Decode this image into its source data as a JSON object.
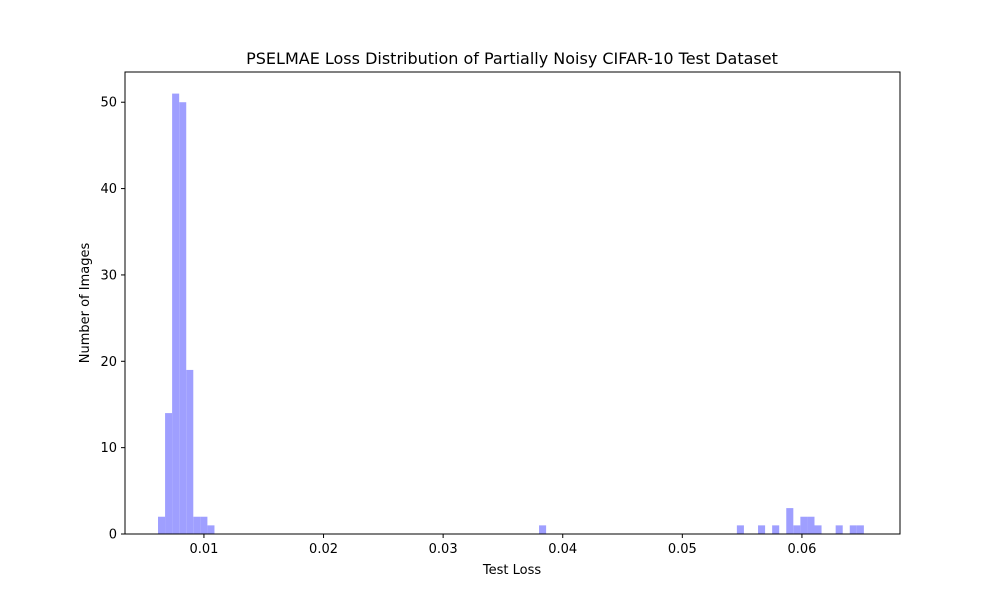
{
  "chart_data": {
    "type": "bar",
    "subtype": "histogram",
    "title": "PSELMAE Loss Distribution of Partially Noisy CIFAR-10 Test Dataset",
    "xlabel": "Test Loss",
    "ylabel": "Number of Images",
    "xlim": [
      0.0034,
      0.0682
    ],
    "ylim": [
      0,
      53.5
    ],
    "bin_width": 0.00059,
    "x_ticks": [
      0.01,
      0.02,
      0.03,
      0.04,
      0.05,
      0.06
    ],
    "x_tick_labels": [
      "0.01",
      "0.02",
      "0.03",
      "0.04",
      "0.05",
      "0.06"
    ],
    "y_ticks": [
      0,
      10,
      20,
      30,
      40,
      50
    ],
    "y_tick_labels": [
      "0",
      "10",
      "20",
      "30",
      "40",
      "50"
    ],
    "bar_color": "#9f9fff",
    "grid": false,
    "legend": "none",
    "bins": [
      {
        "x": 0.00616,
        "count": 2
      },
      {
        "x": 0.00675,
        "count": 14
      },
      {
        "x": 0.00734,
        "count": 51
      },
      {
        "x": 0.00793,
        "count": 50
      },
      {
        "x": 0.00852,
        "count": 19
      },
      {
        "x": 0.00911,
        "count": 2
      },
      {
        "x": 0.0097,
        "count": 2
      },
      {
        "x": 0.01029,
        "count": 1
      },
      {
        "x": 0.03802,
        "count": 1
      },
      {
        "x": 0.05456,
        "count": 1
      },
      {
        "x": 0.05633,
        "count": 1
      },
      {
        "x": 0.05751,
        "count": 1
      },
      {
        "x": 0.05869,
        "count": 3
      },
      {
        "x": 0.05928,
        "count": 1
      },
      {
        "x": 0.05987,
        "count": 2
      },
      {
        "x": 0.06046,
        "count": 2
      },
      {
        "x": 0.06105,
        "count": 1
      },
      {
        "x": 0.06282,
        "count": 1
      },
      {
        "x": 0.064,
        "count": 1
      },
      {
        "x": 0.06459,
        "count": 1
      }
    ]
  }
}
